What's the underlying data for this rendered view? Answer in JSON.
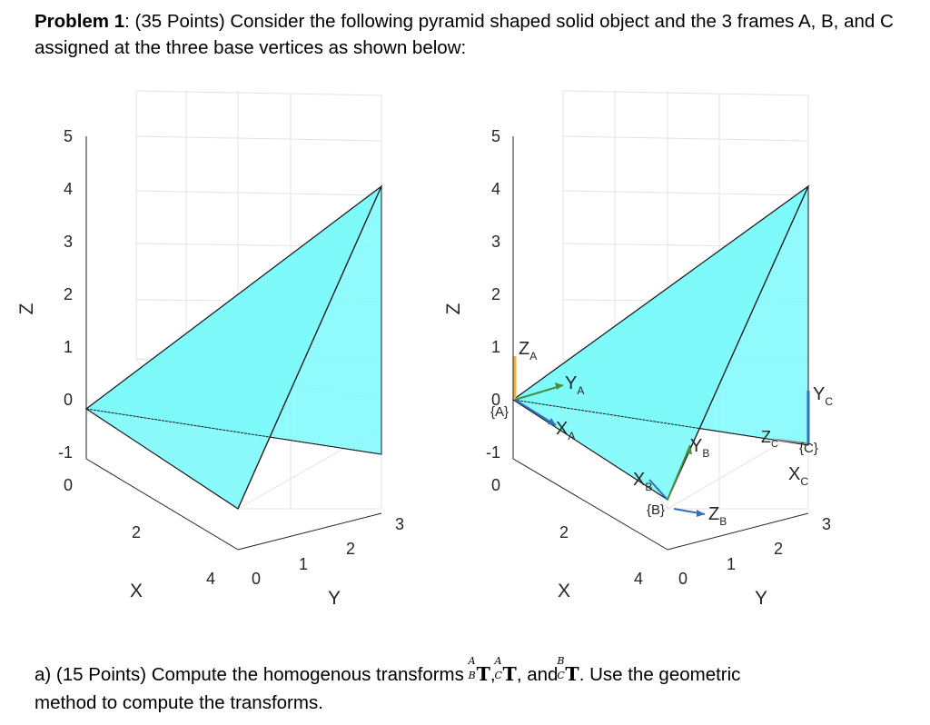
{
  "problem": {
    "label": "Problem 1",
    "text": ": (35 Points) Consider the following pyramid shaped solid object and the 3 frames A, B, and C assigned at the three base vertices as shown below:"
  },
  "figures": {
    "left": {
      "z_ticks": [
        "5",
        "4",
        "3",
        "2",
        "1",
        "0",
        "-1",
        "0"
      ],
      "z_label": "Z",
      "x_ticks": [
        "2",
        "4"
      ],
      "x_label": "X",
      "y_ticks": [
        "0",
        "1",
        "2",
        "3"
      ],
      "y_label": "Y"
    },
    "right": {
      "z_ticks": [
        "5",
        "4",
        "3",
        "2",
        "1",
        "0",
        "-1",
        "0"
      ],
      "z_label": "Z",
      "x_ticks": [
        "2",
        "4"
      ],
      "x_label": "X",
      "y_ticks": [
        "0",
        "1",
        "2",
        "3"
      ],
      "y_label": "Y",
      "frame_labels": {
        "za": "Z",
        "za_sub": "A",
        "ya": "Y",
        "ya_sub": "A",
        "xa": "X",
        "xa_sub": "A",
        "frame_a": "{A}",
        "xb": "X",
        "xb_sub": "B",
        "yb": "Y",
        "yb_sub": "B",
        "zb": "Z",
        "zb_sub": "B",
        "frame_b": "{B}",
        "yc": "Y",
        "yc_sub": "C",
        "zc": "Z",
        "zc_sub": "C",
        "xc": "X",
        "xc_sub": "C",
        "frame_c": "{C}"
      }
    },
    "colors": {
      "face": "#7df9fb",
      "edge": "#1a1a1a",
      "grid": "#e3e3e3",
      "axis_x": "#2f6fb8",
      "axis_y": "#4a8b3c",
      "axis_z": "#f0b030"
    }
  },
  "part_a": {
    "text_1": "a) (15 Points) Compute the homogenous transforms ",
    "t1_sup": "A",
    "t1_sub": "B",
    "sep_1": ",",
    "t2_sup": "A",
    "t2_sub": "C",
    "sep_2": ", and",
    "t3_sup": "B",
    "t3_sub": "C",
    "text_2": ". Use the geometric",
    "text_3": "method to compute the transforms.",
    "t_letter": "T"
  }
}
